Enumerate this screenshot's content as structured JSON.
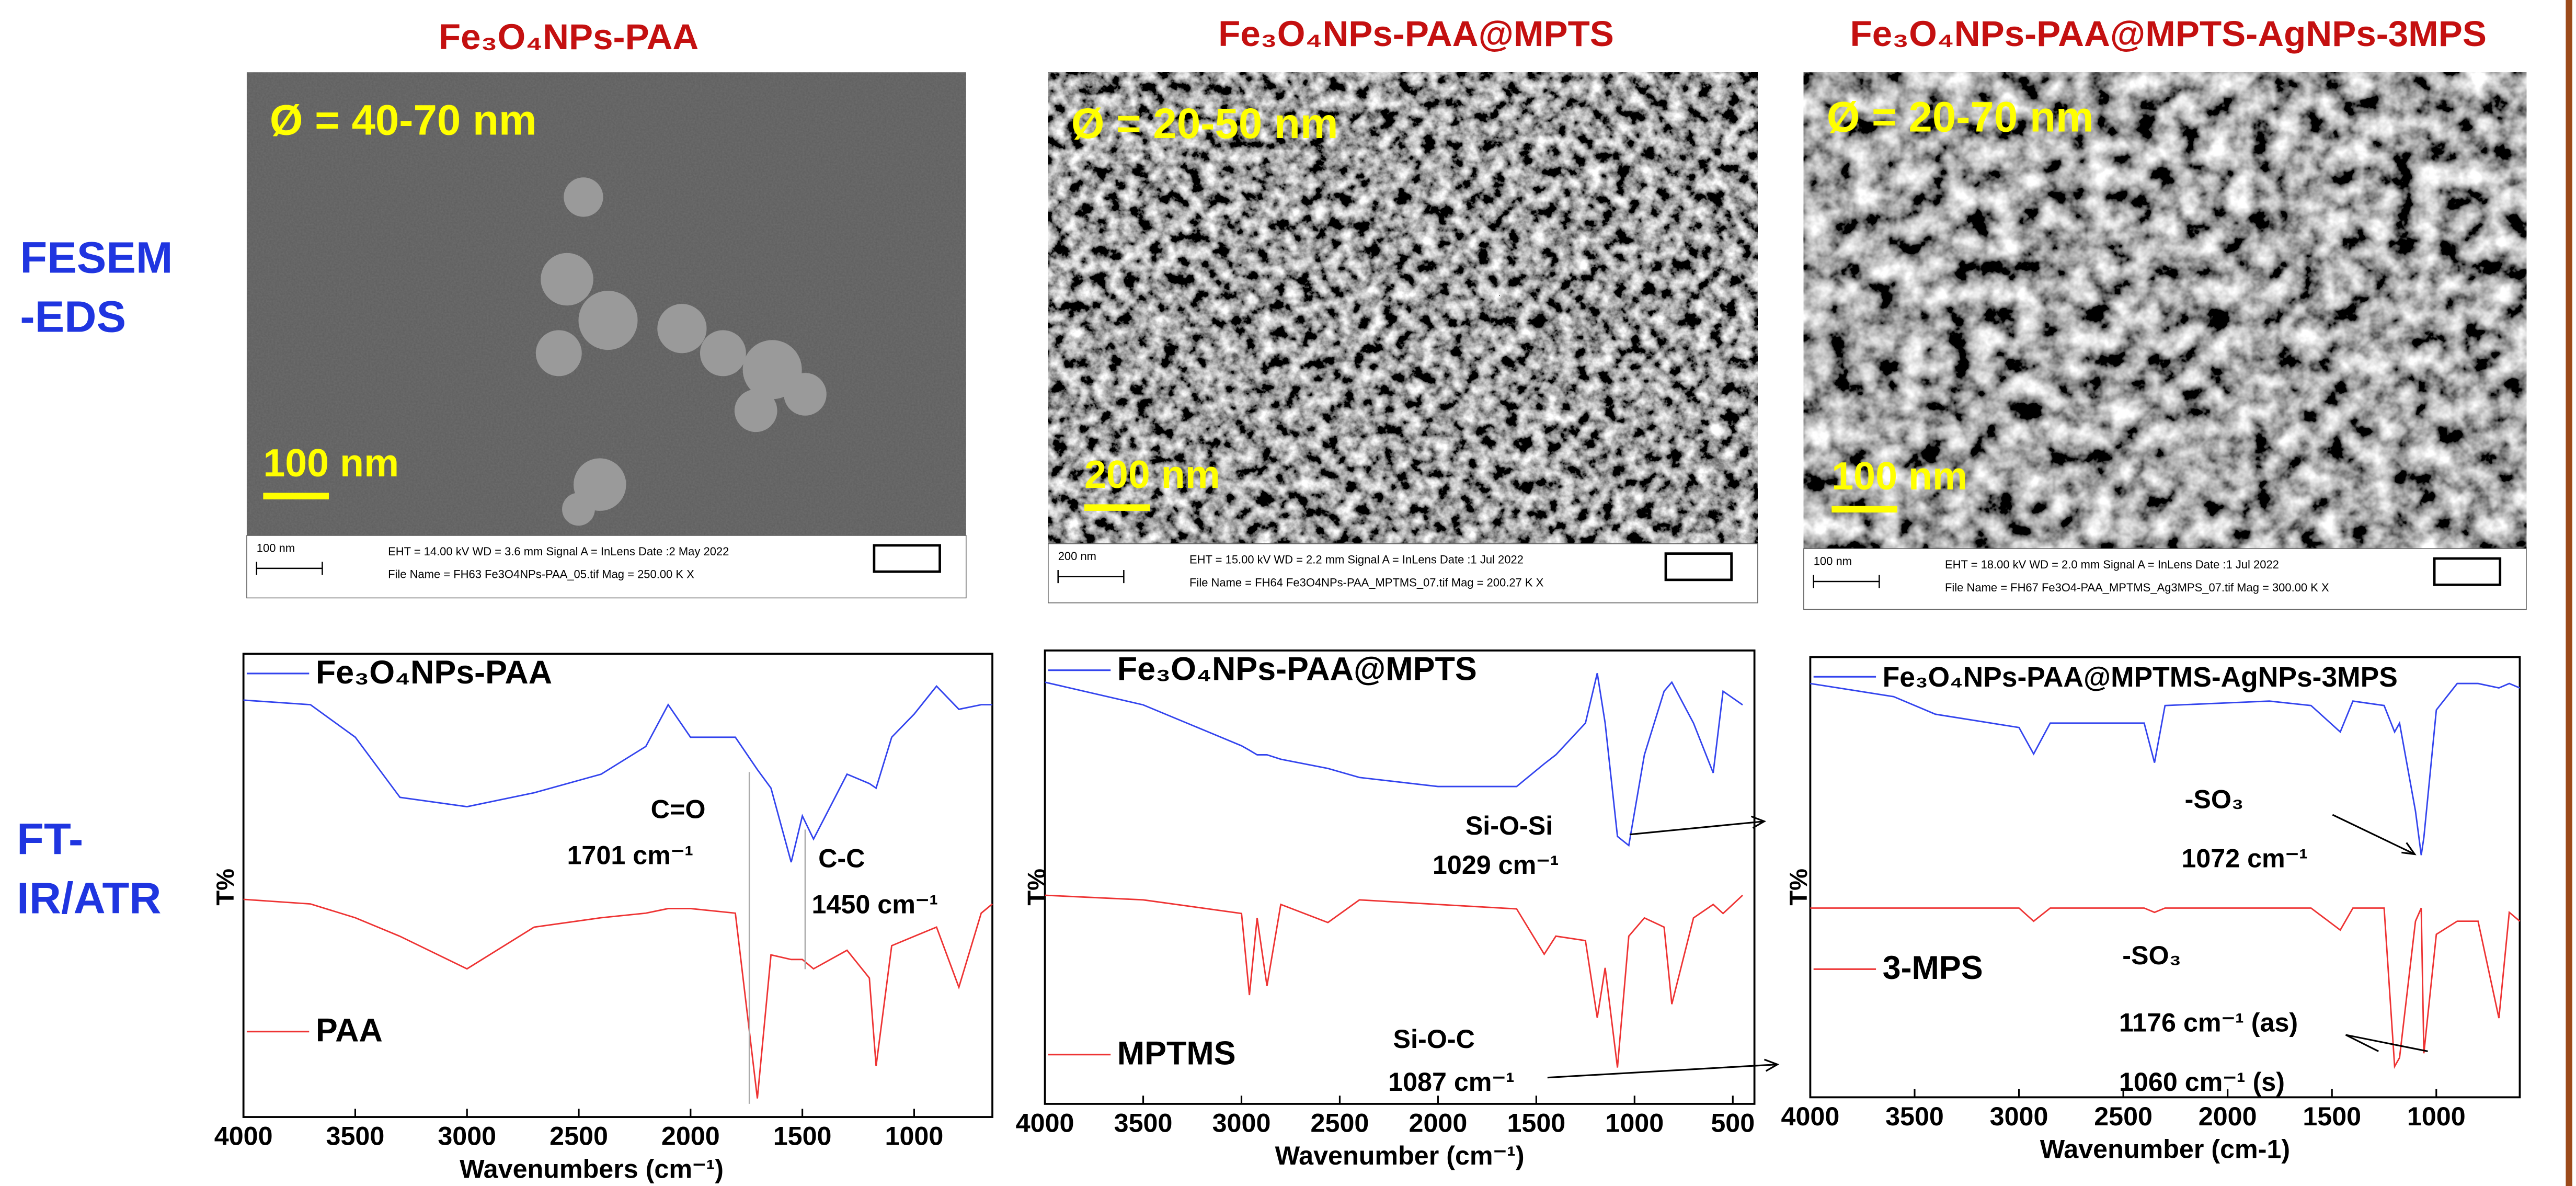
{
  "row_labels": [
    "FESEM\n-EDS",
    "FT-\nIR/ATR"
  ],
  "sem_panels": [
    {
      "title": "Fe₃O₄NPs-PAA",
      "diameter": "Ø = 40-70 nm",
      "scale_bar": "100 nm",
      "info_scale": "100 nm",
      "info_line_1": "EHT = 14.00 kV    WD =  3.6 mm    Signal A = InLens    Date :2 May 2022",
      "info_line_2": "File Name = FH63 Fe3O4NPs-PAA_05.tif            Mag =  250.00 K X"
    },
    {
      "title": "Fe₃O₄NPs-PAA@MPTS",
      "diameter": "Ø = 20-50 nm",
      "scale_bar": "200 nm",
      "info_scale": "200 nm",
      "info_line_1": "EHT = 15.00 kV    WD =  2.2 mm    Signal A = InLens    Date :1 Jul 2022",
      "info_line_2": "File Name = FH64 Fe3O4NPs-PAA_MPTMS_07.tif     Mag =  200.27 K X"
    },
    {
      "title": "Fe₃O₄NPs-PAA@MPTS-AgNPs-3MPS",
      "diameter": "Ø = 20-70 nm",
      "scale_bar": "100 nm",
      "info_scale": "100 nm",
      "info_line_1": "EHT = 18.00 kV    WD =  2.0 mm    Signal A = InLens    Date :1 Jul 2022",
      "info_line_2": "File Name = FH67 Fe3O4-PAA_MPTMS_Ag3MPS_07.tif Mag =  300.00 K X"
    }
  ],
  "chart_data": [
    {
      "type": "line",
      "x_label": "Wavenumbers (cm⁻¹)",
      "y_label": "T%",
      "x": [
        4000,
        3700,
        3500,
        3300,
        3000,
        2700,
        2400,
        2200,
        2100,
        2000,
        1800,
        1701,
        1640,
        1550,
        1500,
        1450,
        1300,
        1200,
        1170,
        1100,
        1000,
        900,
        800,
        700,
        650
      ],
      "xlim": [
        4000,
        650
      ],
      "xticks": [
        4000,
        3500,
        3000,
        2500,
        2000,
        1500,
        1000
      ],
      "ylim": [
        0,
        100
      ],
      "series": [
        {
          "name": "Fe₃O₄NPs-PAA",
          "color": "#3344ee",
          "values": [
            90,
            89,
            82,
            69,
            67,
            70,
            74,
            80,
            89,
            82,
            82,
            75,
            71,
            55,
            65,
            60,
            74,
            72,
            71,
            82,
            87,
            93,
            88,
            89,
            89
          ]
        },
        {
          "name": "PAA",
          "color": "#ee3333",
          "values": [
            47,
            46,
            43,
            39,
            32,
            41,
            43,
            44,
            45,
            45,
            44,
            4,
            35,
            34,
            34,
            32,
            36,
            30,
            11,
            37,
            39,
            41,
            28,
            44,
            46
          ]
        }
      ],
      "annotations": [
        "C=O",
        "1701 cm⁻¹",
        "C-C",
        "1450 cm⁻¹"
      ]
    },
    {
      "type": "line",
      "x_label": "Wavenumber (cm⁻¹)",
      "y_label": "T%",
      "x": [
        4000,
        3500,
        3000,
        2960,
        2920,
        2870,
        2800,
        2560,
        2400,
        2000,
        1600,
        1460,
        1400,
        1250,
        1190,
        1150,
        1087,
        1029,
        950,
        850,
        810,
        700,
        600,
        550,
        450
      ],
      "xlim": [
        4000,
        390
      ],
      "xticks": [
        4000,
        3500,
        3000,
        2500,
        2000,
        1500,
        1000,
        500
      ],
      "ylim": [
        0,
        100
      ],
      "series": [
        {
          "name": "Fe₃O₄NPs-PAA@MPTS",
          "color": "#3344ee",
          "values": [
            93,
            88,
            79,
            78,
            77,
            77,
            76,
            74,
            72,
            70,
            70,
            75,
            77,
            84,
            95,
            84,
            59,
            57,
            77,
            91,
            93,
            84,
            73,
            91,
            88
          ]
        },
        {
          "name": "MPTMS",
          "color": "#ee3333",
          "values": [
            46,
            45,
            42,
            24,
            41,
            26,
            44,
            40,
            45,
            44,
            43,
            33,
            37,
            36,
            19,
            30,
            8,
            37,
            41,
            39,
            22,
            41,
            44,
            42,
            46
          ]
        }
      ],
      "annotations": [
        "Si-O-Si",
        "1029 cm⁻¹",
        "Si-O-C",
        "1087 cm⁻¹"
      ]
    },
    {
      "type": "line",
      "x_label": "Wavenumber (cm-1)",
      "y_label": "T%",
      "x": [
        4000,
        3600,
        3400,
        3000,
        2930,
        2850,
        2400,
        2350,
        2300,
        1800,
        1600,
        1460,
        1400,
        1250,
        1200,
        1176,
        1100,
        1072,
        1060,
        1000,
        900,
        800,
        700,
        650,
        600
      ],
      "xlim": [
        4000,
        600
      ],
      "xticks": [
        4000,
        3500,
        3000,
        2500,
        2000,
        1500,
        1000
      ],
      "ylim": [
        0,
        100
      ],
      "series": [
        {
          "name": "Fe₃O₄NPs-PAA@MPTMS-AgNPs-3MPS",
          "color": "#3344ee",
          "values": [
            94,
            91,
            87,
            84,
            78,
            85,
            85,
            76,
            89,
            90,
            89,
            83,
            90,
            89,
            83,
            85,
            65,
            55,
            59,
            88,
            94,
            94,
            93,
            94,
            93
          ]
        },
        {
          "name": "3-MPS",
          "color": "#ee3333",
          "values": [
            43,
            43,
            43,
            43,
            40,
            43,
            43,
            42,
            43,
            43,
            43,
            38,
            43,
            43,
            7,
            9,
            40,
            43,
            10,
            37,
            40,
            40,
            18,
            42,
            40
          ]
        }
      ],
      "annotations": [
        "-SO₃",
        "1072 cm⁻¹",
        "-SO₃",
        "1176 cm⁻¹ (as)",
        "1060 cm⁻¹ (s)"
      ]
    }
  ]
}
